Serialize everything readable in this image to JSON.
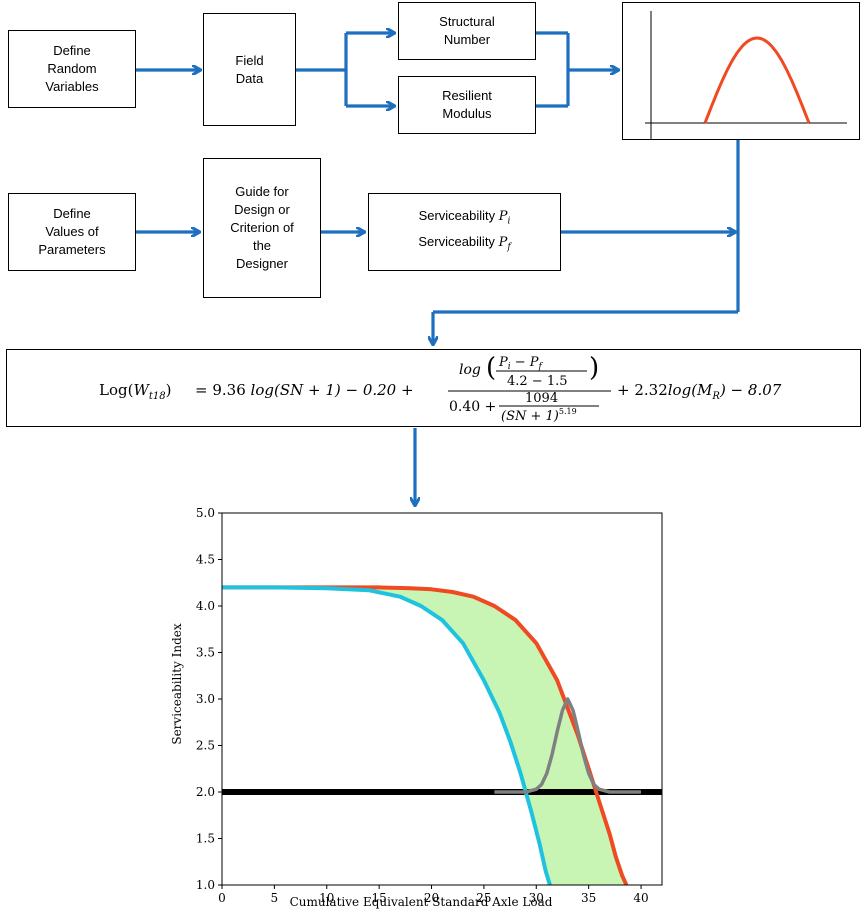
{
  "flowchart": {
    "boxes": {
      "define_random_variables": "Define\nRandom\nVariables",
      "field_data": "Field\nData",
      "structural_number": "Structural\nNumber",
      "resilient_modulus": "Resilient\nModulus",
      "define_values_of_parameters": "Define\nValues of\nParameters",
      "guide_for_design": "Guide for\nDesign or\nCriterion of\nthe\nDesigner",
      "serviceability_label": "Serviceability",
      "pi_sym": "P",
      "pi_sub": "i",
      "pf_sym": "P",
      "pf_sub": "f"
    },
    "arrow_color": "#1f6fbf",
    "curve_color": "#f04a23"
  },
  "equation": {
    "lhs_log": "Log(",
    "lhs_w": "W",
    "lhs_sub": "t18",
    "lhs_close": ")",
    "term1": "= 9.36",
    "term1_log": "log",
    "term1_arg": "(SN + 1) − 0.20 +",
    "num_log": "log",
    "num_inner_top": "P",
    "num_inner_top_i": "i",
    "num_inner_minus": " − P",
    "num_inner_top_f": "f",
    "num_inner_bottom": "4.2 − 1.5",
    "den_const": "0.40 +",
    "den_num": "1094",
    "den_den": "(SN + 1)",
    "den_exp": "5.19",
    "tail": "+ 2.32",
    "tail_log": "log",
    "tail_arg": "(M",
    "tail_sub": "R",
    "tail_end": ") − 8.07"
  },
  "chart_data": {
    "type": "line",
    "title": "",
    "xlabel": "Cumulative Equivalent Standard Axle Load",
    "ylabel": "Serviceability Index",
    "xlim": [
      0,
      42
    ],
    "ylim": [
      1.0,
      5.0
    ],
    "x_ticks": [
      0,
      5,
      10,
      15,
      20,
      25,
      30,
      35,
      40
    ],
    "y_ticks": [
      1.0,
      1.5,
      2.0,
      2.5,
      3.0,
      3.5,
      4.0,
      4.5,
      5.0
    ],
    "series": [
      {
        "color": "#f04a23",
        "x": [
          0,
          5,
          10,
          15,
          18,
          20,
          22,
          24,
          26,
          28,
          30,
          32,
          33,
          34,
          35,
          36,
          37,
          37.6,
          38.2,
          38.6
        ],
        "y": [
          4.2,
          4.2,
          4.2,
          4.2,
          4.19,
          4.18,
          4.15,
          4.1,
          4.0,
          3.85,
          3.6,
          3.2,
          2.9,
          2.6,
          2.25,
          1.9,
          1.55,
          1.3,
          1.1,
          1.0
        ]
      },
      {
        "color": "#1fc3e0",
        "x": [
          0,
          5,
          10,
          14,
          17,
          19,
          21,
          23,
          25,
          26.5,
          27.5,
          28.5,
          29.5,
          30.3,
          30.9,
          31.3
        ],
        "y": [
          4.2,
          4.2,
          4.19,
          4.17,
          4.1,
          4.0,
          3.85,
          3.6,
          3.2,
          2.85,
          2.55,
          2.2,
          1.8,
          1.45,
          1.15,
          1.0
        ]
      },
      {
        "color": "#808080",
        "x": [
          26,
          28,
          29,
          30,
          30.5,
          31,
          31.5,
          32,
          32.5,
          33,
          33.5,
          34,
          34.5,
          35,
          35.5,
          36,
          37,
          40
        ],
        "y": [
          2.0,
          2.0,
          2.0,
          2.03,
          2.08,
          2.2,
          2.4,
          2.65,
          2.88,
          3.0,
          2.88,
          2.65,
          2.4,
          2.2,
          2.08,
          2.03,
          2.0,
          2.0
        ]
      }
    ],
    "threshold_y": 2.0,
    "fill_color": "#c8f5b4"
  }
}
